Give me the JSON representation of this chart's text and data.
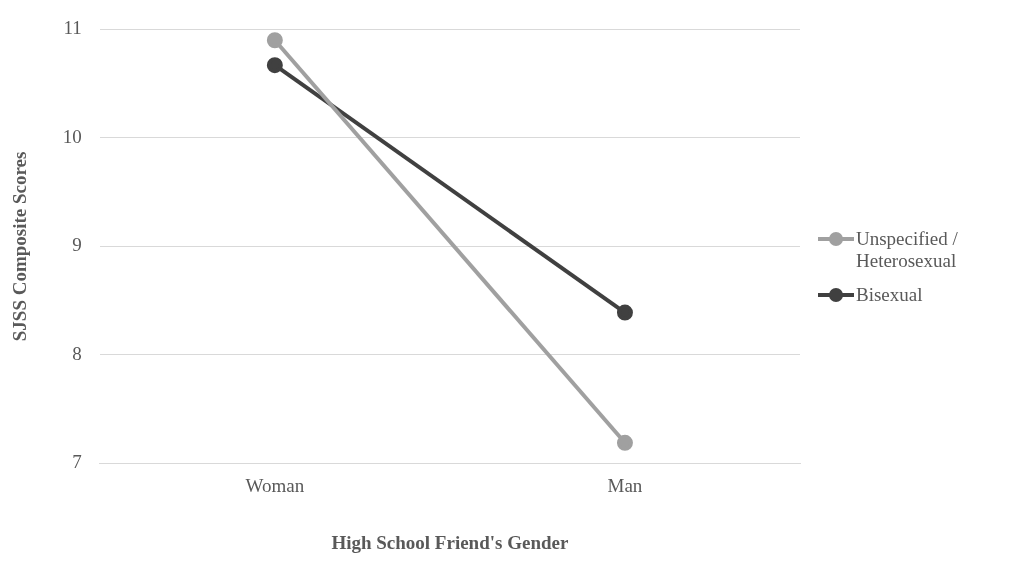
{
  "chart_data": {
    "type": "line",
    "xlabel": "High School Friend's Gender",
    "ylabel": "SJSS Composite Scores",
    "categories": [
      "Woman",
      "Man"
    ],
    "series": [
      {
        "name": "Unspecified / Heterosexual",
        "color": "#a0a0a0",
        "values": [
          10.9,
          7.19
        ]
      },
      {
        "name": "Bisexual",
        "color": "#404040",
        "values": [
          10.67,
          8.39
        ]
      }
    ],
    "ylim": [
      7,
      11
    ],
    "yticks": [
      7,
      8,
      9,
      10,
      11
    ],
    "grid": "y",
    "legend": "right",
    "marker": "circle"
  }
}
